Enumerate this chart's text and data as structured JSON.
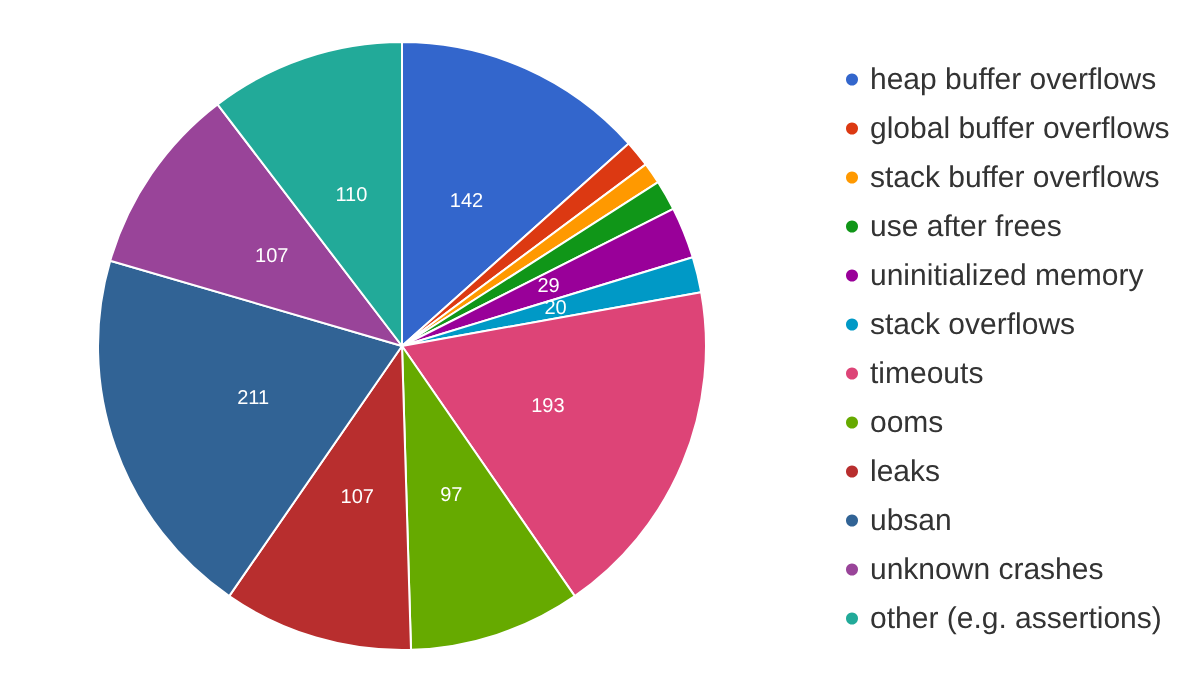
{
  "chart_data": {
    "type": "pie",
    "categories": [
      "heap buffer overflows",
      "global buffer overflows",
      "stack buffer overflows",
      "use after frees",
      "uninitialized memory",
      "stack overflows",
      "timeouts",
      "ooms",
      "leaks",
      "ubsan",
      "unknown crashes",
      "other (e.g. assertions)"
    ],
    "values": [
      142,
      15,
      12,
      17,
      29,
      20,
      193,
      97,
      107,
      211,
      107,
      110
    ],
    "value_labels": [
      "142",
      null,
      null,
      null,
      "29",
      "20",
      "193",
      "97",
      "107",
      "211",
      "107",
      "110"
    ],
    "colors": [
      "#3366cc",
      "#dc3912",
      "#ff9900",
      "#109618",
      "#990099",
      "#0099c6",
      "#dd4477",
      "#66aa00",
      "#b82e2e",
      "#316395",
      "#994499",
      "#22aa99"
    ],
    "legend": "right"
  }
}
